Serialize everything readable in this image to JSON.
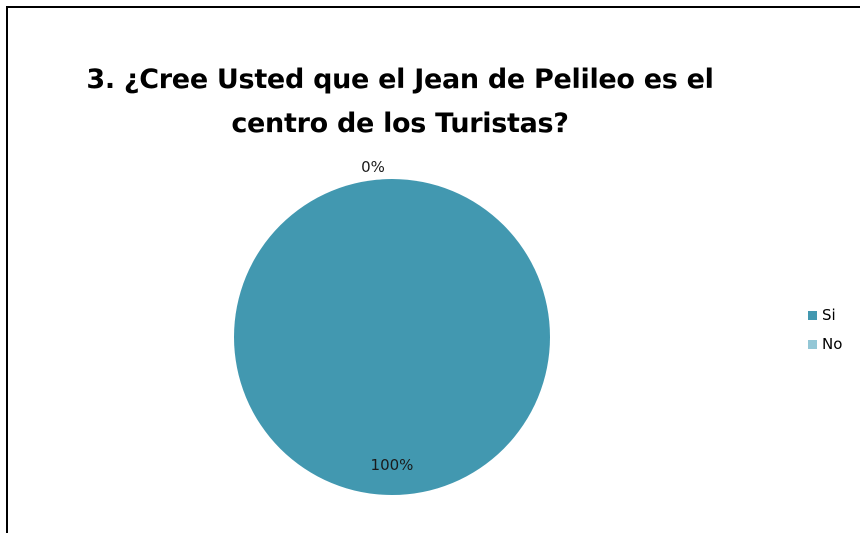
{
  "chart_data": {
    "type": "pie",
    "title_lines": [
      "3. ¿Cree Usted que el Jean de Pelileo es el",
      "centro de los Turistas?"
    ],
    "categories": [
      "Si",
      "No"
    ],
    "values": [
      100,
      0
    ],
    "data_labels": [
      "100%",
      "0%"
    ],
    "colors": [
      "#4298b0",
      "#93c7d6"
    ],
    "legend_position": "right"
  }
}
